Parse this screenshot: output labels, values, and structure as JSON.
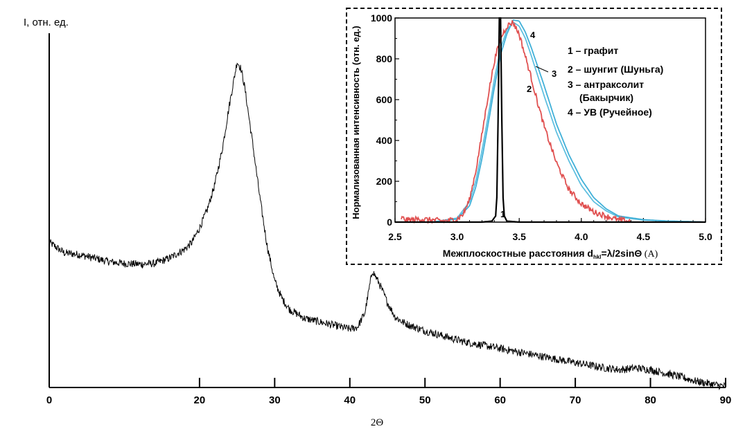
{
  "chart_data": [
    {
      "type": "line",
      "ylabel": "I, отн. ед.",
      "xlabel": "2Θ",
      "xlim": [
        0,
        90
      ],
      "x_ticks": [
        0,
        20,
        30,
        40,
        50,
        60,
        70,
        80,
        90
      ],
      "y_ticks": [],
      "grid": false,
      "series": [
        {
          "x": [
            0,
            2,
            4,
            6,
            8,
            10,
            12,
            14,
            16,
            18,
            19,
            20,
            21,
            22,
            23,
            24,
            24.5,
            25,
            25.5,
            26,
            27,
            28,
            29,
            30,
            31,
            32,
            34,
            36,
            38,
            40,
            41,
            42,
            43,
            44,
            45,
            46,
            47,
            48,
            50,
            55,
            60,
            65,
            70,
            74,
            76,
            78,
            80,
            82,
            84,
            86,
            88,
            90
          ],
          "values": [
            41,
            38,
            37.5,
            36.5,
            35.5,
            35,
            34.8,
            35,
            36.5,
            39,
            41,
            45,
            50,
            57,
            67,
            80,
            86,
            92,
            90,
            85,
            70,
            54,
            40,
            30,
            25,
            22,
            19.5,
            18.5,
            17.5,
            16.5,
            17,
            21,
            33,
            29,
            24,
            20,
            18.5,
            17.5,
            16,
            13,
            11,
            9,
            7,
            5.5,
            5,
            5.5,
            5,
            4,
            3,
            1.8,
            1,
            0.3
          ]
        }
      ]
    },
    {
      "type": "line",
      "xlabel": "Межплоскостные расстояния d_hkl=λ/2sinΘ (A)",
      "ylabel": "Нормализованная интенсивность (отн. ед.)",
      "xlim": [
        2.5,
        5.0
      ],
      "ylim": [
        0,
        1000
      ],
      "x_ticks": [
        2.5,
        3.0,
        3.5,
        4.0,
        4.5,
        5.0
      ],
      "y_ticks": [
        0,
        200,
        400,
        600,
        800,
        1000
      ],
      "legend": [
        "1 – графит",
        "2 – шунгит (Шуньга)",
        "3 – антракcолит",
        "(Бакырчик)",
        "4 – УВ (Ручейное)"
      ],
      "annotations": [
        "1",
        "2",
        "3",
        "4"
      ],
      "series": [
        {
          "name": "1",
          "color": "#000000",
          "x": [
            2.5,
            3.0,
            3.2,
            3.28,
            3.31,
            3.32,
            3.33,
            3.34,
            3.35,
            3.36,
            3.37,
            3.38,
            3.4,
            3.5,
            5.0
          ],
          "values": [
            0,
            0,
            0,
            5,
            30,
            120,
            500,
            1000,
            1000,
            500,
            120,
            30,
            5,
            0,
            0
          ]
        },
        {
          "name": "2",
          "color": "#e05050",
          "x": [
            2.55,
            2.6,
            2.7,
            2.8,
            2.9,
            3.0,
            3.05,
            3.1,
            3.15,
            3.2,
            3.25,
            3.3,
            3.35,
            3.4,
            3.45,
            3.5,
            3.55,
            3.6,
            3.65,
            3.7,
            3.8,
            3.9,
            4.0,
            4.1,
            4.2,
            4.3,
            4.4
          ],
          "values": [
            20,
            10,
            15,
            10,
            5,
            15,
            40,
            110,
            250,
            430,
            620,
            790,
            900,
            960,
            980,
            920,
            810,
            700,
            580,
            470,
            290,
            160,
            90,
            50,
            30,
            10,
            5
          ]
        },
        {
          "name": "3",
          "color": "#60c0e0",
          "x": [
            2.8,
            3.0,
            3.1,
            3.15,
            3.2,
            3.25,
            3.3,
            3.35,
            3.4,
            3.45,
            3.5,
            3.55,
            3.6,
            3.7,
            3.8,
            3.9,
            4.0,
            4.1,
            4.2,
            4.3,
            4.5,
            4.7,
            4.9,
            5.0
          ],
          "values": [
            0,
            20,
            100,
            200,
            350,
            520,
            700,
            850,
            940,
            980,
            960,
            900,
            810,
            620,
            440,
            300,
            180,
            100,
            55,
            25,
            10,
            5,
            2,
            0
          ]
        },
        {
          "name": "4",
          "color": "#40b0d8",
          "x": [
            2.8,
            3.0,
            3.1,
            3.15,
            3.2,
            3.25,
            3.3,
            3.35,
            3.4,
            3.45,
            3.5,
            3.55,
            3.6,
            3.7,
            3.8,
            3.9,
            4.0,
            4.1,
            4.2,
            4.3,
            4.5,
            4.7,
            4.9,
            5.0
          ],
          "values": [
            0,
            15,
            80,
            170,
            310,
            480,
            660,
            820,
            920,
            990,
            985,
            930,
            850,
            670,
            480,
            330,
            210,
            120,
            65,
            30,
            12,
            5,
            2,
            0
          ]
        }
      ]
    }
  ]
}
